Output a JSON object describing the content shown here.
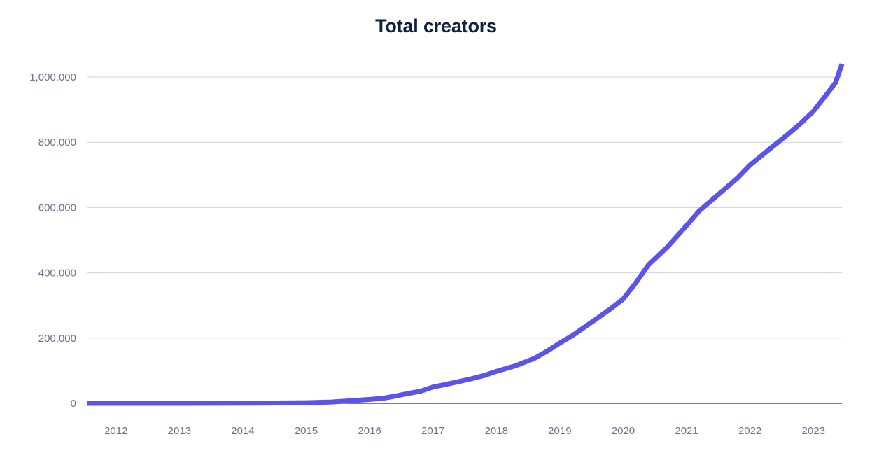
{
  "chart_data": {
    "type": "line",
    "title": "Total creators",
    "xlabel": "",
    "ylabel": "",
    "x_tick_labels": [
      "2012",
      "2013",
      "2014",
      "2015",
      "2016",
      "2017",
      "2018",
      "2019",
      "2020",
      "2021",
      "2022",
      "2023"
    ],
    "y_tick_labels": [
      "0",
      "200,000",
      "400,000",
      "600,000",
      "800,000",
      "1,000,000"
    ],
    "y_ticks": [
      0,
      200000,
      400000,
      600000,
      800000,
      1000000
    ],
    "xlim": [
      2011.55,
      2023.45
    ],
    "ylim": [
      0,
      1000000
    ],
    "grid": true,
    "line_color": "#5b54e8",
    "series": [
      {
        "name": "Total creators",
        "x": [
          2011.55,
          2012.0,
          2013.0,
          2014.0,
          2014.5,
          2015.0,
          2015.4,
          2015.7,
          2016.0,
          2016.2,
          2016.4,
          2016.6,
          2016.8,
          2017.0,
          2017.3,
          2017.6,
          2017.8,
          2018.0,
          2018.3,
          2018.6,
          2018.8,
          2019.0,
          2019.2,
          2019.4,
          2019.6,
          2019.8,
          2020.0,
          2020.2,
          2020.4,
          2020.7,
          2021.0,
          2021.2,
          2021.5,
          2021.8,
          2022.0,
          2022.3,
          2022.6,
          2022.8,
          2023.0,
          2023.2,
          2023.35,
          2023.45
        ],
        "y": [
          0,
          0,
          0,
          500,
          1000,
          2000,
          4000,
          8000,
          12000,
          15000,
          22000,
          30000,
          37000,
          50000,
          62000,
          75000,
          85000,
          98000,
          115000,
          138000,
          160000,
          185000,
          208000,
          235000,
          262000,
          290000,
          320000,
          370000,
          425000,
          480000,
          545000,
          590000,
          640000,
          690000,
          730000,
          778000,
          825000,
          858000,
          895000,
          945000,
          983000,
          1040000
        ]
      }
    ]
  }
}
